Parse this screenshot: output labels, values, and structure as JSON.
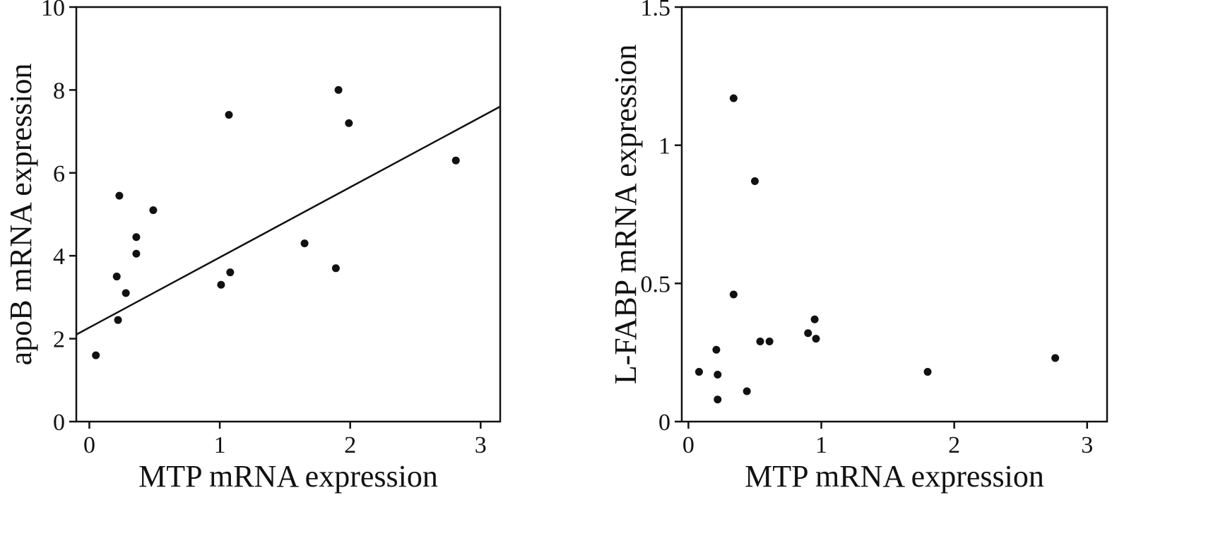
{
  "chart_data": [
    {
      "type": "scatter",
      "xlabel": "MTP mRNA expression",
      "ylabel": "apoB mRNA expression",
      "xlim": [
        -0.1,
        3.15
      ],
      "ylim": [
        0,
        10
      ],
      "x_ticks": [
        "0",
        "1",
        "2",
        "3"
      ],
      "y_ticks": [
        "0",
        "2",
        "4",
        "6",
        "8",
        "10"
      ],
      "grid": false,
      "points": [
        {
          "x": 0.05,
          "y": 1.6
        },
        {
          "x": 0.21,
          "y": 3.5
        },
        {
          "x": 0.22,
          "y": 2.45
        },
        {
          "x": 0.23,
          "y": 5.45
        },
        {
          "x": 0.28,
          "y": 3.1
        },
        {
          "x": 0.36,
          "y": 4.45
        },
        {
          "x": 0.36,
          "y": 4.05
        },
        {
          "x": 0.49,
          "y": 5.1
        },
        {
          "x": 1.01,
          "y": 3.3
        },
        {
          "x": 1.07,
          "y": 7.4
        },
        {
          "x": 1.08,
          "y": 3.6
        },
        {
          "x": 1.65,
          "y": 4.3
        },
        {
          "x": 1.89,
          "y": 3.7
        },
        {
          "x": 1.91,
          "y": 8.0
        },
        {
          "x": 1.99,
          "y": 7.2
        },
        {
          "x": 2.81,
          "y": 6.3
        }
      ],
      "trendline": {
        "x": [
          -0.1,
          3.15
        ],
        "y": [
          2.1,
          7.6
        ]
      }
    },
    {
      "type": "scatter",
      "xlabel": "MTP  mRNA  expression",
      "ylabel": "L-FABP mRNA expression",
      "xlim": [
        -0.05,
        3.15
      ],
      "ylim": [
        0,
        1.5
      ],
      "x_ticks": [
        "0",
        "1",
        "2",
        "3"
      ],
      "y_ticks": [
        "0",
        "0.5",
        "1",
        "1.5"
      ],
      "grid": false,
      "points": [
        {
          "x": 0.08,
          "y": 0.18
        },
        {
          "x": 0.21,
          "y": 0.26
        },
        {
          "x": 0.22,
          "y": 0.17
        },
        {
          "x": 0.22,
          "y": 0.08
        },
        {
          "x": 0.34,
          "y": 1.17
        },
        {
          "x": 0.34,
          "y": 0.46
        },
        {
          "x": 0.44,
          "y": 0.11
        },
        {
          "x": 0.5,
          "y": 0.87
        },
        {
          "x": 0.54,
          "y": 0.29
        },
        {
          "x": 0.61,
          "y": 0.29
        },
        {
          "x": 0.9,
          "y": 0.32
        },
        {
          "x": 0.95,
          "y": 0.37
        },
        {
          "x": 0.96,
          "y": 0.3
        },
        {
          "x": 1.8,
          "y": 0.18
        },
        {
          "x": 2.76,
          "y": 0.23
        }
      ]
    }
  ]
}
